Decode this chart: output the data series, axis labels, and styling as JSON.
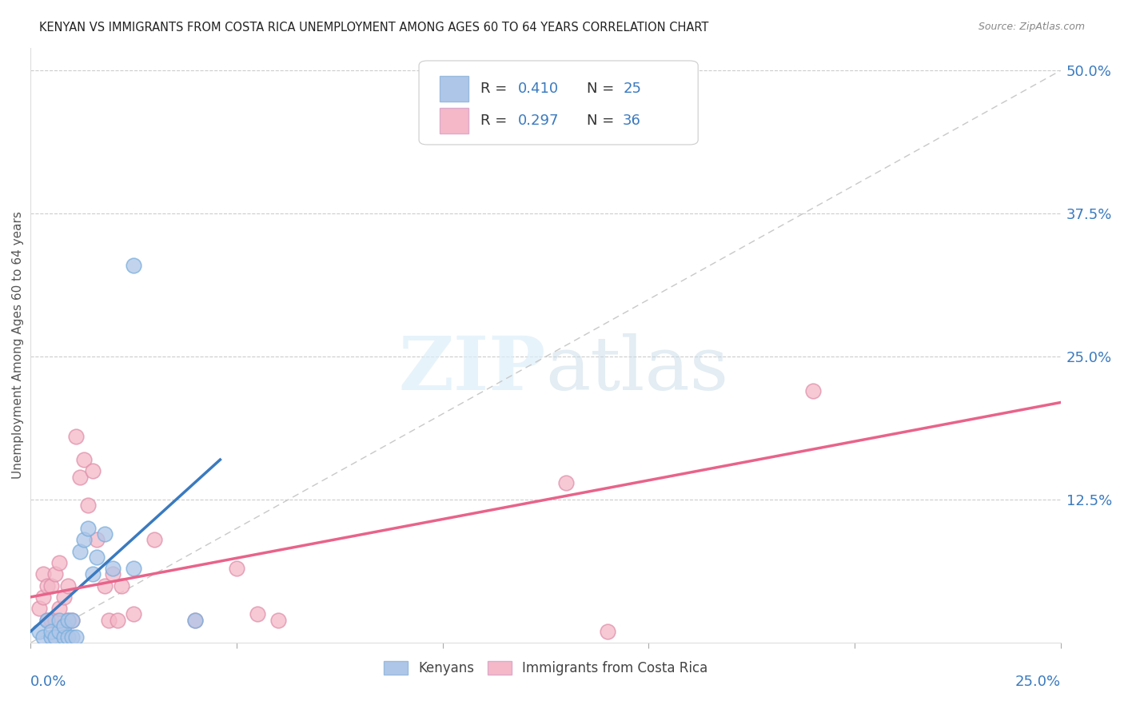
{
  "title": "KENYAN VS IMMIGRANTS FROM COSTA RICA UNEMPLOYMENT AMONG AGES 60 TO 64 YEARS CORRELATION CHART",
  "source": "Source: ZipAtlas.com",
  "ylabel": "Unemployment Among Ages 60 to 64 years",
  "ytick_labels": [
    "12.5%",
    "25.0%",
    "37.5%",
    "50.0%"
  ],
  "ytick_values": [
    0.125,
    0.25,
    0.375,
    0.5
  ],
  "xlim": [
    0,
    0.25
  ],
  "ylim": [
    0,
    0.52
  ],
  "blue_color": "#aec6e8",
  "pink_color": "#f4b8c8",
  "blue_line_color": "#3a7abf",
  "pink_line_color": "#e8638a",
  "diagonal_color": "#c8c8c8",
  "kenyan_x": [
    0.002,
    0.003,
    0.004,
    0.005,
    0.005,
    0.006,
    0.007,
    0.007,
    0.008,
    0.008,
    0.009,
    0.009,
    0.01,
    0.01,
    0.011,
    0.012,
    0.013,
    0.014,
    0.015,
    0.016,
    0.018,
    0.02,
    0.025,
    0.025,
    0.04
  ],
  "kenyan_y": [
    0.01,
    0.005,
    0.02,
    0.005,
    0.01,
    0.005,
    0.01,
    0.02,
    0.005,
    0.015,
    0.005,
    0.02,
    0.005,
    0.02,
    0.005,
    0.08,
    0.09,
    0.1,
    0.06,
    0.075,
    0.095,
    0.065,
    0.33,
    0.065,
    0.02
  ],
  "costarica_x": [
    0.002,
    0.003,
    0.003,
    0.004,
    0.004,
    0.005,
    0.005,
    0.006,
    0.006,
    0.007,
    0.007,
    0.008,
    0.008,
    0.009,
    0.009,
    0.01,
    0.011,
    0.012,
    0.013,
    0.014,
    0.015,
    0.016,
    0.018,
    0.019,
    0.02,
    0.021,
    0.022,
    0.025,
    0.03,
    0.04,
    0.05,
    0.055,
    0.06,
    0.13,
    0.14,
    0.19
  ],
  "costarica_y": [
    0.03,
    0.04,
    0.06,
    0.02,
    0.05,
    0.02,
    0.05,
    0.02,
    0.06,
    0.03,
    0.07,
    0.015,
    0.04,
    0.02,
    0.05,
    0.02,
    0.18,
    0.145,
    0.16,
    0.12,
    0.15,
    0.09,
    0.05,
    0.02,
    0.06,
    0.02,
    0.05,
    0.025,
    0.09,
    0.02,
    0.065,
    0.025,
    0.02,
    0.14,
    0.01,
    0.22
  ],
  "kenyan_line_x": [
    0.0,
    0.046
  ],
  "kenyan_line_y": [
    0.01,
    0.16
  ],
  "costarica_line_x": [
    0.0,
    0.25
  ],
  "costarica_line_y": [
    0.04,
    0.21
  ]
}
